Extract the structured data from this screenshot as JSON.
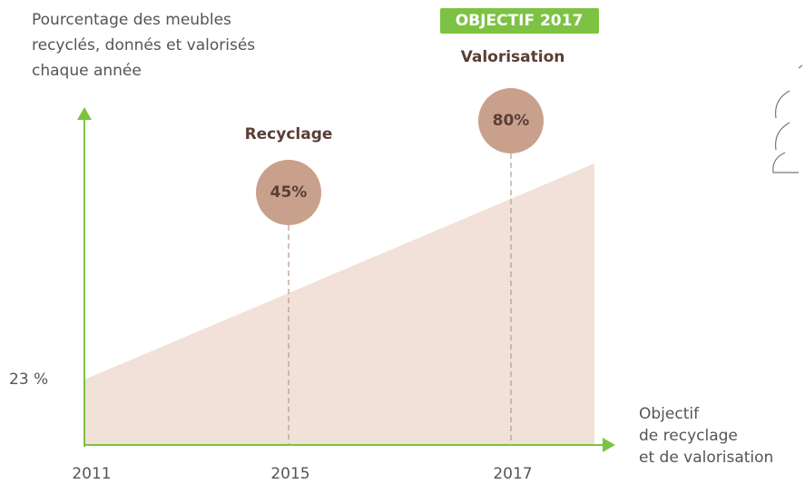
{
  "y_axis_label": [
    "Pourcentage des meubles",
    "recyclés, donnés et valorisés",
    "chaque année"
  ],
  "start_label": "23 %",
  "x_labels": [
    "2011",
    "2015",
    "2017"
  ],
  "x_axis_label": [
    "Objectif",
    "de recyclage",
    "et de valorisation"
  ],
  "milestones": [
    {
      "title": "Recyclage",
      "value": "45%"
    },
    {
      "title": "Valorisation",
      "value": "80%",
      "badge": "OBJECTIF 2017"
    }
  ]
}
